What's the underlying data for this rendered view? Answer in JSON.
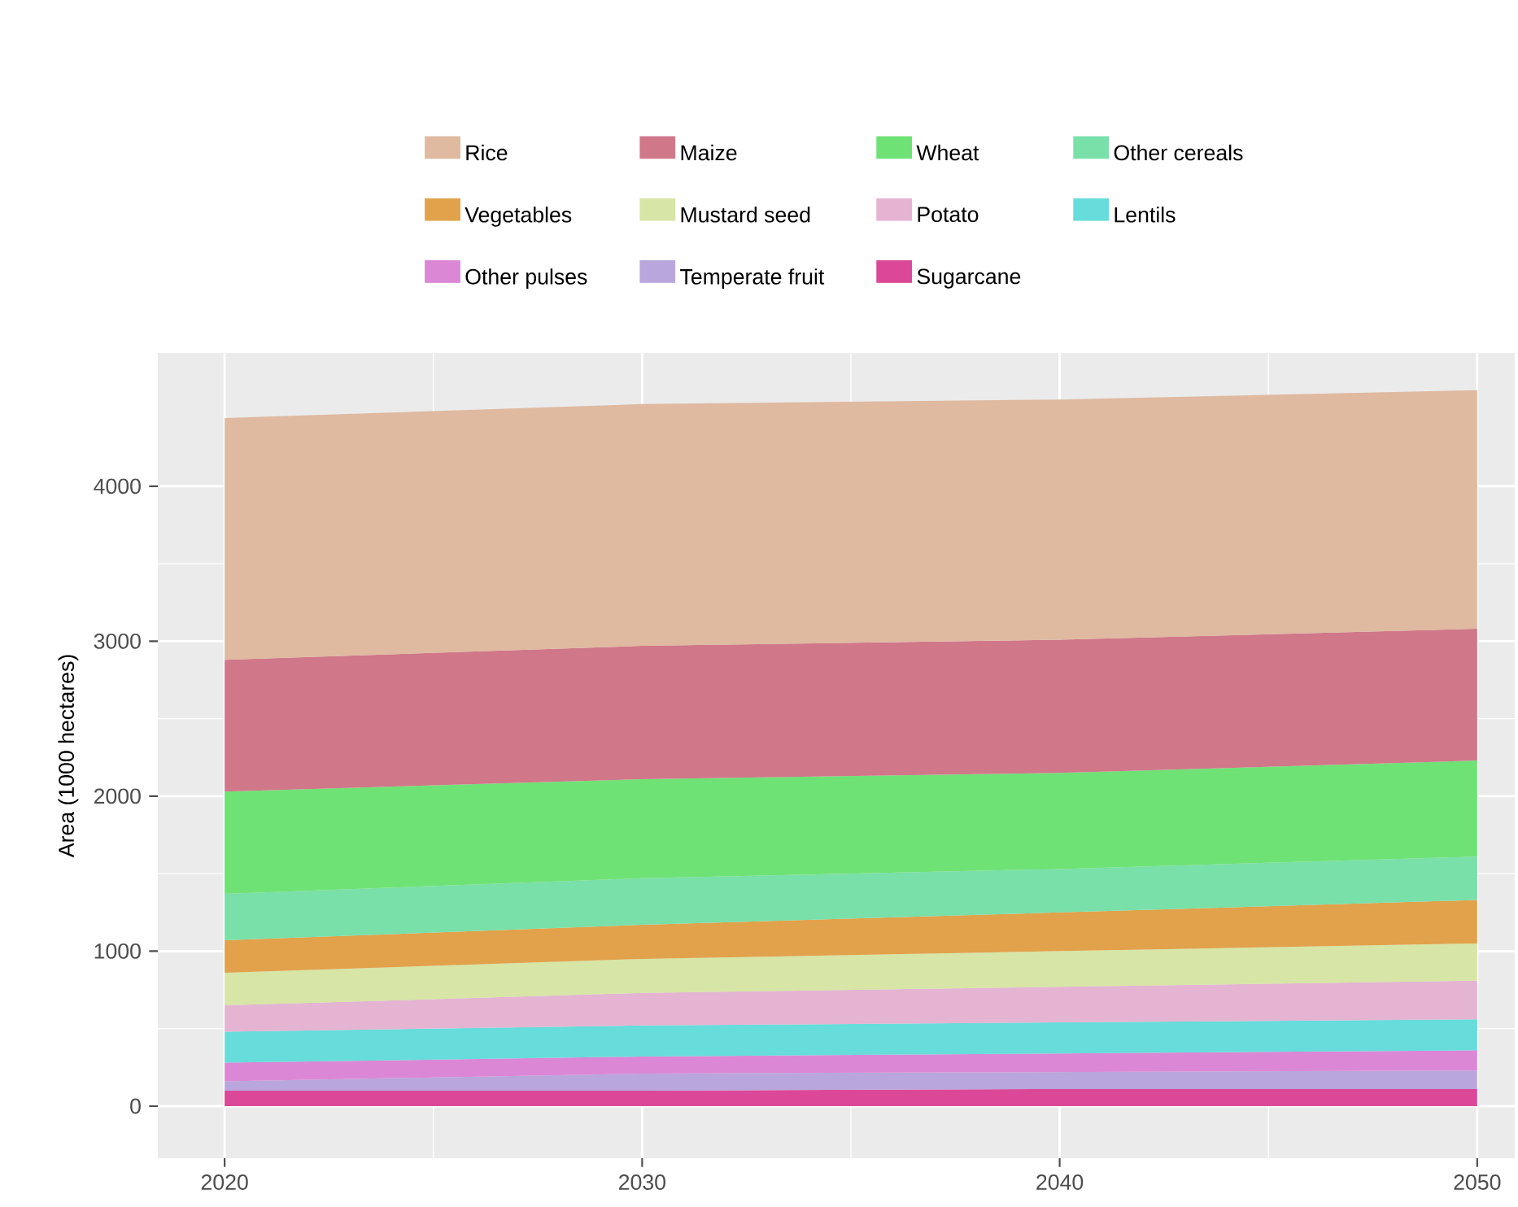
{
  "chart_data": {
    "type": "area",
    "stacked": true,
    "ylabel": "Area (1000 hectares)",
    "x": [
      2020,
      2030,
      2040,
      2050
    ],
    "xlim": [
      2018.4,
      2050.9
    ],
    "xticks": [
      2020,
      2030,
      2040,
      2050
    ],
    "ylim": [
      -336,
      4860
    ],
    "yticks": [
      0,
      1000,
      2000,
      3000,
      4000
    ],
    "grid": true,
    "legend": "top",
    "series": [
      {
        "name": "Sugarcane",
        "color": "#dc4898",
        "values": [
          100,
          100,
          110,
          110
        ]
      },
      {
        "name": "Temperate fruit",
        "color": "#b9a6dc",
        "values": [
          60,
          110,
          110,
          120
        ]
      },
      {
        "name": "Other pulses",
        "color": "#db87d6",
        "values": [
          120,
          110,
          120,
          130
        ]
      },
      {
        "name": "Lentils",
        "color": "#66dcdb",
        "values": [
          200,
          200,
          200,
          200
        ]
      },
      {
        "name": "Potato",
        "color": "#e4b4d2",
        "values": [
          170,
          210,
          230,
          250
        ]
      },
      {
        "name": "Mustard seed",
        "color": "#d7e5a6",
        "values": [
          210,
          220,
          230,
          240
        ]
      },
      {
        "name": "Vegetables",
        "color": "#e1a24b",
        "values": [
          210,
          220,
          250,
          280
        ]
      },
      {
        "name": "Other cereals",
        "color": "#78e0a8",
        "values": [
          300,
          300,
          280,
          280
        ]
      },
      {
        "name": "Wheat",
        "color": "#6fe276",
        "values": [
          660,
          640,
          620,
          620
        ]
      },
      {
        "name": "Maize",
        "color": "#d07789",
        "values": [
          850,
          860,
          860,
          850
        ]
      },
      {
        "name": "Rice",
        "color": "#dfb9a0",
        "values": [
          1560,
          1560,
          1550,
          1540
        ]
      }
    ]
  }
}
